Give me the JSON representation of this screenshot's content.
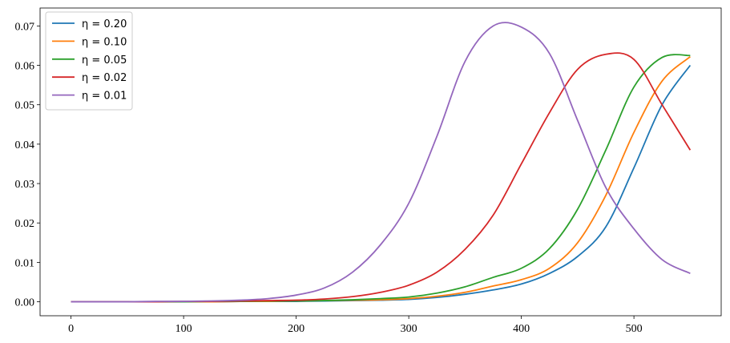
{
  "chart_data": {
    "type": "line",
    "x": [
      0,
      25,
      50,
      75,
      100,
      125,
      150,
      175,
      200,
      225,
      250,
      275,
      300,
      325,
      350,
      375,
      400,
      425,
      450,
      475,
      500,
      525,
      550
    ],
    "series": [
      {
        "name": "η = 0.20",
        "color": "#1f77b4",
        "values": [
          0,
          0,
          0,
          0,
          0,
          0,
          0.0001,
          0.0001,
          0.0001,
          0.0002,
          0.0003,
          0.0004,
          0.0006,
          0.0011,
          0.0019,
          0.003,
          0.0045,
          0.0072,
          0.0115,
          0.019,
          0.034,
          0.05,
          0.06
        ]
      },
      {
        "name": "η = 0.10",
        "color": "#ff7f0e",
        "values": [
          0,
          0,
          0,
          0,
          0,
          0,
          0.0001,
          0.0001,
          0.0002,
          0.0003,
          0.0004,
          0.0005,
          0.0008,
          0.0014,
          0.0024,
          0.004,
          0.0056,
          0.0085,
          0.015,
          0.027,
          0.043,
          0.056,
          0.0622
        ]
      },
      {
        "name": "η = 0.05",
        "color": "#2ca02c",
        "values": [
          0,
          0,
          0,
          0,
          0,
          0.0001,
          0.0001,
          0.0002,
          0.0002,
          0.0003,
          0.0005,
          0.0008,
          0.0012,
          0.0022,
          0.0038,
          0.0062,
          0.0085,
          0.0135,
          0.0235,
          0.0385,
          0.0545,
          0.062,
          0.0625
        ]
      },
      {
        "name": "η = 0.02",
        "color": "#d62728",
        "values": [
          0,
          0,
          0,
          0,
          0.0001,
          0.0001,
          0.0002,
          0.0003,
          0.0004,
          0.0007,
          0.0013,
          0.0024,
          0.0042,
          0.0075,
          0.0133,
          0.022,
          0.035,
          0.048,
          0.059,
          0.0628,
          0.0615,
          0.05,
          0.0385
        ]
      },
      {
        "name": "η = 0.01",
        "color": "#9467bd",
        "values": [
          0,
          0,
          0,
          0.0001,
          0.0001,
          0.0002,
          0.0004,
          0.0008,
          0.0017,
          0.0035,
          0.0075,
          0.0145,
          0.025,
          0.042,
          0.061,
          0.07,
          0.0697,
          0.063,
          0.046,
          0.029,
          0.0185,
          0.0107,
          0.0072
        ]
      }
    ],
    "xlim": [
      -27.5,
      577.5
    ],
    "xticks": [
      0,
      100,
      200,
      300,
      400,
      500
    ],
    "ylim": [
      -0.00355,
      0.07455
    ],
    "yticks": [
      {
        "value": 0,
        "label": "0.00"
      },
      0.01,
      0.02,
      0.03,
      0.04,
      0.05,
      0.06,
      0.07
    ],
    "legend": "upper left"
  }
}
